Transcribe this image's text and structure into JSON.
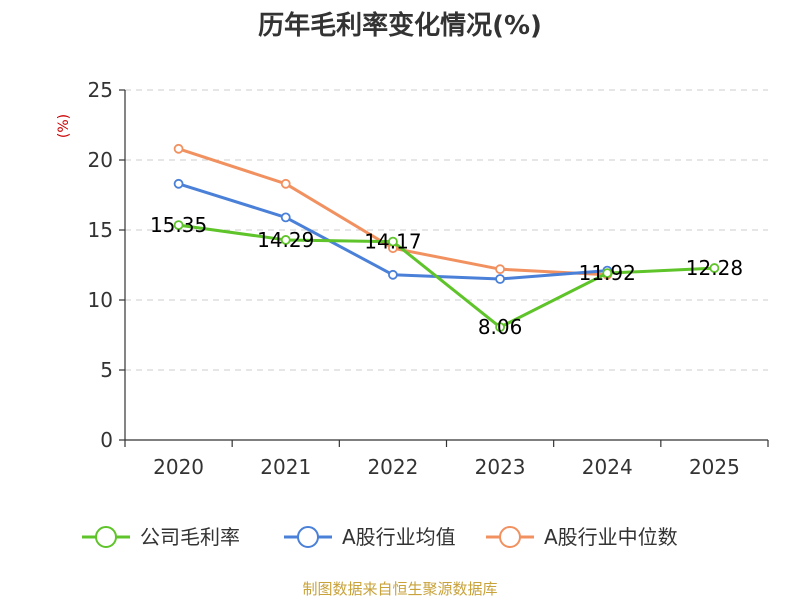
{
  "chart_data": {
    "type": "line",
    "title": "历年毛利率变化情况(%)",
    "ylabel": "(%)",
    "xlabel": "",
    "categories": [
      "2020",
      "2021",
      "2022",
      "2023",
      "2024",
      "2025"
    ],
    "ylim": [
      0,
      25
    ],
    "yticks": [
      0,
      5,
      10,
      15,
      20,
      25
    ],
    "grid": true,
    "legend_position": "bottom",
    "series": [
      {
        "name": "公司毛利率",
        "color": "#5ec429",
        "values": [
          15.35,
          14.29,
          14.17,
          8.06,
          11.92,
          12.28
        ],
        "labels": [
          "15.35",
          "14.29",
          "14.17",
          "8.06",
          "11.92",
          "12.28"
        ]
      },
      {
        "name": "A股行业均值",
        "color": "#4a80d8",
        "values": [
          18.3,
          15.9,
          11.8,
          11.5,
          12.1,
          null
        ],
        "labels": []
      },
      {
        "name": "A股行业中位数",
        "color": "#f29160",
        "values": [
          20.8,
          18.3,
          13.7,
          12.2,
          11.8,
          null
        ],
        "labels": []
      }
    ]
  },
  "footer": {
    "source": "制图数据来自恒生聚源数据库"
  }
}
